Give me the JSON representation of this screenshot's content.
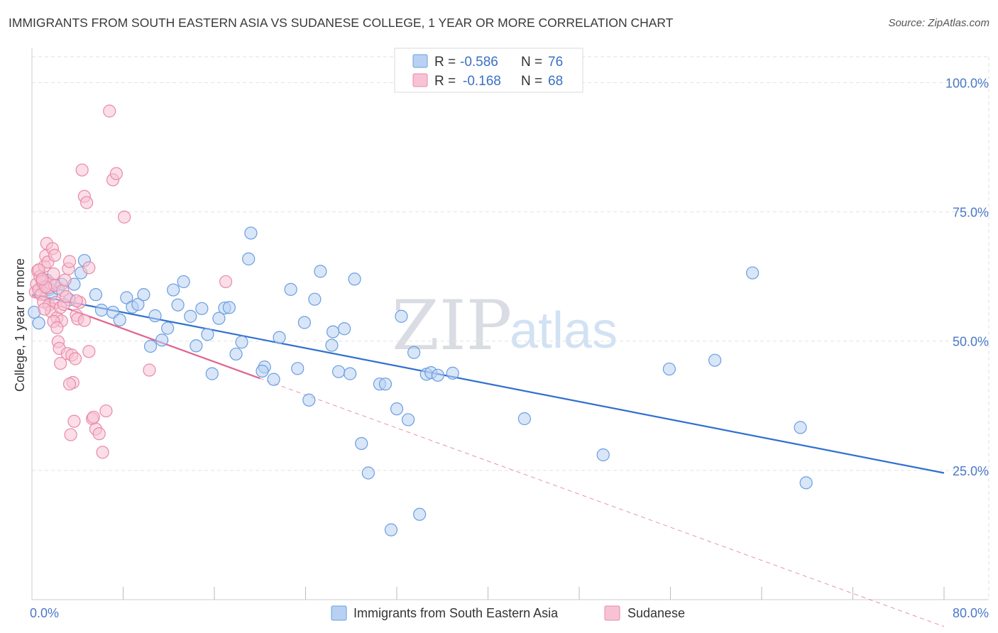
{
  "header": {
    "title": "IMMIGRANTS FROM SOUTH EASTERN ASIA VS SUDANESE COLLEGE, 1 YEAR OR MORE CORRELATION CHART",
    "source": "Source: ZipAtlas.com"
  },
  "watermark": {
    "zip": "ZIP",
    "atlas": "atlas"
  },
  "legend_top": {
    "rows": [
      {
        "r_label": "R =",
        "r_value": "-0.586",
        "n_label": "N =",
        "n_value": "76"
      },
      {
        "r_label": "R =",
        "r_value": "-0.168",
        "n_label": "N =",
        "n_value": "68"
      }
    ]
  },
  "legend_bottom": {
    "items": [
      "Immigrants from South Eastern Asia",
      "Sudanese"
    ]
  },
  "colors": {
    "blue_fill": "#b8d1f3",
    "blue_stroke": "#6a9ee0",
    "blue_line": "#2f6fd1",
    "pink_fill": "#f7c3d4",
    "pink_stroke": "#e88aa8",
    "pink_line": "#e0648e",
    "grid": "#e2e2e2",
    "axis_text": "#4a78c8"
  },
  "chart_data": {
    "type": "scatter",
    "title": "IMMIGRANTS FROM SOUTH EASTERN ASIA VS SUDANESE COLLEGE, 1 YEAR OR MORE CORRELATION CHART",
    "xlabel": "",
    "ylabel": "College, 1 year or more",
    "xlim": [
      0,
      80
    ],
    "ylim": [
      0,
      105
    ],
    "x_tick_labels": [
      "0.0%",
      "80.0%"
    ],
    "y_ticks": [
      25,
      50,
      75,
      100
    ],
    "y_tick_labels": [
      "25.0%",
      "50.0%",
      "75.0%",
      "100.0%"
    ],
    "grid": true,
    "legend_position": "top-center",
    "series": [
      {
        "name": "Immigrants from South Eastern Asia",
        "color": "#6a9ee0",
        "trend": {
          "x": [
            0,
            80
          ],
          "y": [
            59.0,
            24.5
          ],
          "style": "solid"
        },
        "points": [
          [
            0.6,
            53.5
          ],
          [
            1.0,
            60.5
          ],
          [
            1.3,
            61.8
          ],
          [
            1.5,
            60.0
          ],
          [
            1.7,
            59.0
          ],
          [
            2.3,
            60.2
          ],
          [
            2.6,
            61.0
          ],
          [
            3.3,
            58.0
          ],
          [
            3.7,
            61.0
          ],
          [
            4.3,
            63.2
          ],
          [
            4.6,
            65.6
          ],
          [
            5.6,
            59.0
          ],
          [
            6.1,
            56.0
          ],
          [
            7.1,
            55.6
          ],
          [
            7.7,
            54.1
          ],
          [
            8.3,
            58.4
          ],
          [
            8.8,
            56.6
          ],
          [
            9.3,
            57.1
          ],
          [
            9.8,
            59.0
          ],
          [
            10.4,
            49.0
          ],
          [
            10.8,
            54.9
          ],
          [
            11.4,
            50.2
          ],
          [
            11.9,
            52.5
          ],
          [
            12.4,
            59.9
          ],
          [
            12.8,
            57.0
          ],
          [
            13.3,
            61.5
          ],
          [
            13.9,
            54.8
          ],
          [
            14.4,
            49.1
          ],
          [
            14.9,
            56.3
          ],
          [
            15.4,
            51.3
          ],
          [
            15.8,
            43.7
          ],
          [
            16.4,
            54.4
          ],
          [
            16.9,
            56.4
          ],
          [
            17.3,
            56.5
          ],
          [
            17.9,
            47.5
          ],
          [
            18.4,
            49.8
          ],
          [
            19.0,
            65.9
          ],
          [
            19.2,
            70.9
          ],
          [
            20.4,
            45.0
          ],
          [
            20.2,
            44.2
          ],
          [
            21.2,
            42.6
          ],
          [
            21.7,
            50.7
          ],
          [
            22.7,
            60.0
          ],
          [
            23.3,
            44.7
          ],
          [
            23.9,
            53.6
          ],
          [
            24.3,
            38.6
          ],
          [
            24.8,
            58.1
          ],
          [
            25.3,
            63.5
          ],
          [
            26.3,
            49.2
          ],
          [
            26.4,
            51.8
          ],
          [
            26.9,
            44.1
          ],
          [
            27.4,
            52.4
          ],
          [
            27.9,
            43.7
          ],
          [
            28.3,
            62.0
          ],
          [
            28.9,
            30.2
          ],
          [
            29.5,
            24.5
          ],
          [
            30.5,
            41.7
          ],
          [
            31.0,
            41.7
          ],
          [
            31.5,
            13.5
          ],
          [
            32.0,
            36.9
          ],
          [
            32.4,
            54.8
          ],
          [
            33.0,
            34.8
          ],
          [
            33.5,
            47.8
          ],
          [
            34.0,
            16.5
          ],
          [
            34.6,
            43.6
          ],
          [
            35.0,
            43.9
          ],
          [
            35.6,
            43.4
          ],
          [
            36.9,
            43.8
          ],
          [
            43.2,
            35.0
          ],
          [
            50.1,
            28.0
          ],
          [
            55.9,
            44.6
          ],
          [
            59.9,
            46.3
          ],
          [
            63.2,
            63.2
          ],
          [
            67.4,
            33.3
          ],
          [
            67.9,
            22.6
          ],
          [
            0.2,
            55.6
          ]
        ]
      },
      {
        "name": "Sudanese",
        "color": "#e88aa8",
        "trend": {
          "x": [
            0,
            20
          ],
          "y": [
            58.8,
            42.8
          ],
          "style": "solid"
        },
        "trend_extended": {
          "x": [
            0,
            80
          ],
          "y": [
            58.8,
            -5.2
          ],
          "style": "dashed"
        },
        "points": [
          [
            0.3,
            59.5
          ],
          [
            0.4,
            61.0
          ],
          [
            0.5,
            63.6
          ],
          [
            0.6,
            60.0
          ],
          [
            0.7,
            62.5
          ],
          [
            0.8,
            59.0
          ],
          [
            0.9,
            61.5
          ],
          [
            1.0,
            57.6
          ],
          [
            1.1,
            64.5
          ],
          [
            1.2,
            66.5
          ],
          [
            1.3,
            68.9
          ],
          [
            1.4,
            60.3
          ],
          [
            1.5,
            57.0
          ],
          [
            1.6,
            61.2
          ],
          [
            1.7,
            55.7
          ],
          [
            1.8,
            67.9
          ],
          [
            1.9,
            63.0
          ],
          [
            2.0,
            60.8
          ],
          [
            2.1,
            57.5
          ],
          [
            2.2,
            54.5
          ],
          [
            2.3,
            49.9
          ],
          [
            2.4,
            48.6
          ],
          [
            2.5,
            56.5
          ],
          [
            2.6,
            53.9
          ],
          [
            2.7,
            59.8
          ],
          [
            2.8,
            57.1
          ],
          [
            2.9,
            61.8
          ],
          [
            3.0,
            58.6
          ],
          [
            3.1,
            47.6
          ],
          [
            3.2,
            64.0
          ],
          [
            3.3,
            65.4
          ],
          [
            3.4,
            31.9
          ],
          [
            3.5,
            47.3
          ],
          [
            3.6,
            42.0
          ],
          [
            3.7,
            34.5
          ],
          [
            3.8,
            46.6
          ],
          [
            3.9,
            55.0
          ],
          [
            4.0,
            54.3
          ],
          [
            4.2,
            57.5
          ],
          [
            4.4,
            83.1
          ],
          [
            4.6,
            78.0
          ],
          [
            4.8,
            76.8
          ],
          [
            5.0,
            48.0
          ],
          [
            5.3,
            35.0
          ],
          [
            5.6,
            33.0
          ],
          [
            5.9,
            32.1
          ],
          [
            6.2,
            28.5
          ],
          [
            6.5,
            36.5
          ],
          [
            6.8,
            94.5
          ],
          [
            7.1,
            81.2
          ],
          [
            7.4,
            82.4
          ],
          [
            8.1,
            74.0
          ],
          [
            10.3,
            44.4
          ],
          [
            17.0,
            61.5
          ],
          [
            0.6,
            63.8
          ],
          [
            1.2,
            60.5
          ],
          [
            1.9,
            53.8
          ],
          [
            2.5,
            45.7
          ],
          [
            3.3,
            41.7
          ],
          [
            4.6,
            54.0
          ],
          [
            5.0,
            64.2
          ],
          [
            1.4,
            65.3
          ],
          [
            2.0,
            66.6
          ],
          [
            0.9,
            62.0
          ],
          [
            1.1,
            56.2
          ],
          [
            2.2,
            52.6
          ],
          [
            3.9,
            57.8
          ],
          [
            5.4,
            35.3
          ]
        ]
      }
    ]
  }
}
